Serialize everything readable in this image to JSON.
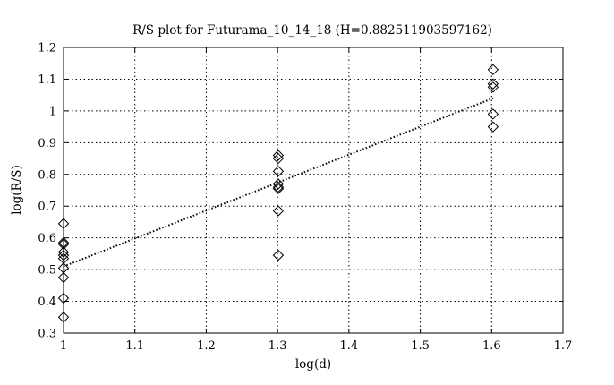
{
  "chart_data": {
    "type": "scatter",
    "title": "R/S plot for Futurama_10_14_18 (H=0.882511903597162)",
    "xlabel": "log(d)",
    "ylabel": "log(R/S)",
    "xlim": [
      1,
      1.7
    ],
    "ylim": [
      0.3,
      1.2
    ],
    "x_ticks": [
      "1",
      "1.1",
      "1.2",
      "1.3",
      "1.4",
      "1.5",
      "1.6",
      "1.7"
    ],
    "y_ticks": [
      "0.3",
      "0.4",
      "0.5",
      "0.6",
      "0.7",
      "0.8",
      "0.9",
      "1",
      "1.1",
      "1.2"
    ],
    "grid": true,
    "marker": "diamond",
    "series": [
      {
        "x": [
          1,
          1,
          1,
          1,
          1,
          1,
          1,
          1,
          1,
          1,
          1.301,
          1.301,
          1.301,
          1.301,
          1.301,
          1.301,
          1.301,
          1.301,
          1.602,
          1.602,
          1.602,
          1.602,
          1.602
        ],
        "y": [
          0.645,
          0.585,
          0.58,
          0.555,
          0.535,
          0.505,
          0.475,
          0.41,
          0.35,
          0.545,
          0.86,
          0.85,
          0.81,
          0.77,
          0.76,
          0.755,
          0.685,
          0.545,
          1.13,
          1.085,
          1.075,
          0.99,
          0.95
        ]
      }
    ],
    "fit_line": {
      "x": [
        1,
        1.602
      ],
      "y": [
        0.51,
        1.04
      ],
      "style": "dotted"
    }
  }
}
